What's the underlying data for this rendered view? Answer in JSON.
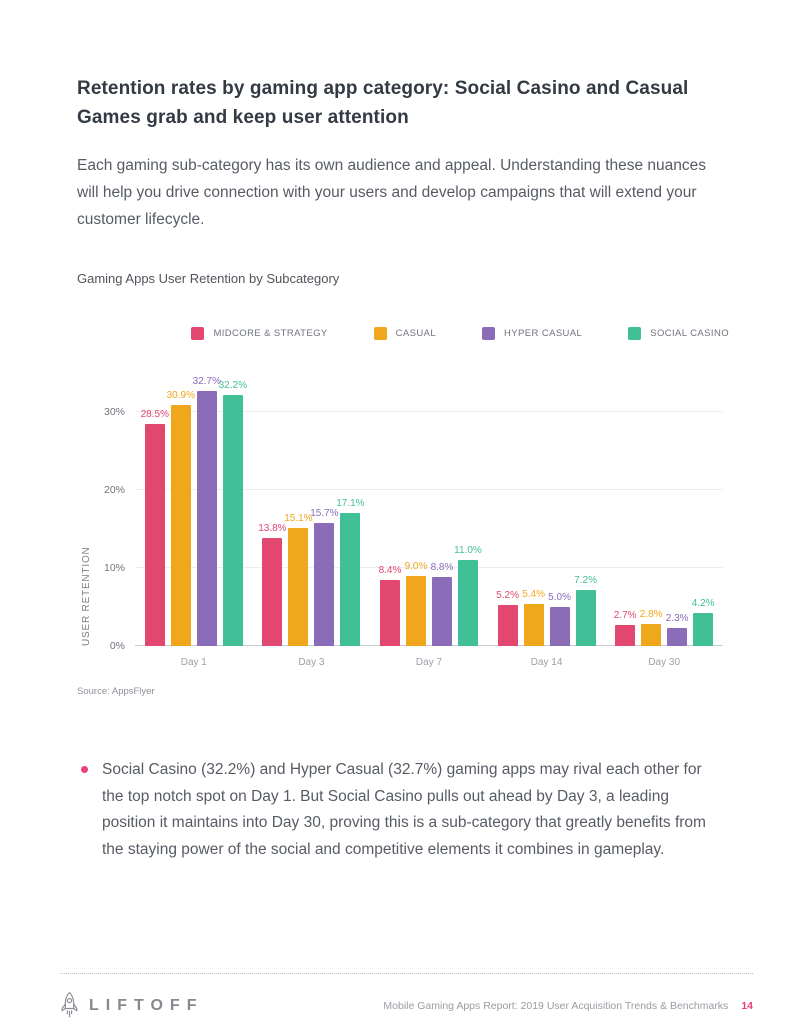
{
  "page": {
    "title": "Retention rates by gaming app category: Social Casino and Casual Games grab and keep user attention",
    "intro": "Each gaming sub-category has its own audience and appeal. Understanding these nuances will help you drive connection with your users and develop campaigns that will extend your customer lifecycle."
  },
  "chart_data": {
    "type": "bar",
    "title": "Gaming Apps User Retention by Subcategory",
    "categories": [
      "Day 1",
      "Day 3",
      "Day 7",
      "Day 14",
      "Day 30"
    ],
    "series": [
      {
        "name": "MIDCORE & STRATEGY",
        "color": "#E2486F",
        "values": [
          28.5,
          13.8,
          8.4,
          5.2,
          2.7
        ]
      },
      {
        "name": "CASUAL",
        "color": "#EFA71B",
        "values": [
          30.9,
          15.1,
          9.0,
          5.4,
          2.8
        ]
      },
      {
        "name": "HYPER CASUAL",
        "color": "#8A6CB9",
        "values": [
          32.7,
          15.7,
          8.8,
          5.0,
          2.3
        ]
      },
      {
        "name": "SOCIAL CASINO",
        "color": "#41BF97",
        "values": [
          32.2,
          17.1,
          11.0,
          7.2,
          4.2
        ]
      }
    ],
    "ylabel": "USER RETENTION",
    "xlabel": "",
    "yticks": [
      {
        "label": "0%",
        "value": 0
      },
      {
        "label": "10%",
        "value": 10
      },
      {
        "label": "20%",
        "value": 20
      },
      {
        "label": "30%",
        "value": 30
      }
    ],
    "ylim": [
      0,
      33.3
    ],
    "value_suffix": "%",
    "grid": "horizontal",
    "legend_position": "top-right",
    "source": "Source: AppsFlyer"
  },
  "bullet": {
    "text": "Social Casino (32.2%) and Hyper Casual (32.7%) gaming apps may rival each other for the top notch spot on Day 1. But Social Casino pulls out ahead by Day 3, a leading position it maintains into Day 30, proving this is a sub-category that greatly benefits from the staying power of the social and competitive elements it combines in gameplay.",
    "bullet_color": "#EE3D80"
  },
  "footer": {
    "brand": "LIFTOFF",
    "report_title": "Mobile Gaming Apps Report: 2019 User Acquisition Trends & Benchmarks",
    "page_number": "14",
    "accent_color": "#EE3D80"
  }
}
